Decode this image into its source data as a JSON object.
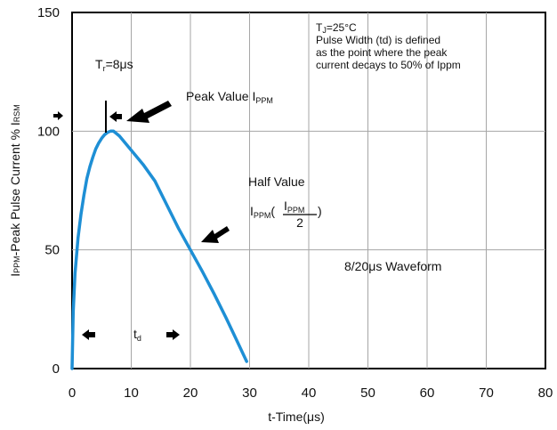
{
  "chart_data": {
    "type": "line",
    "xlabel": "t-Time(μs)",
    "ylabel": {
      "main": "I",
      "sub1": "PPM",
      "mid": "-Peak Pulse Current % I",
      "sub2": "RSM"
    },
    "xlim": [
      0,
      80
    ],
    "ylim": [
      0,
      150
    ],
    "x_ticks": [
      "0",
      "10",
      "20",
      "30",
      "40",
      "50",
      "60",
      "70",
      "80"
    ],
    "y_ticks": [
      "0",
      "50",
      "100",
      "150"
    ],
    "grid": true,
    "series": [
      {
        "color": "#1e8fd5",
        "x": [
          0,
          0.2,
          0.5,
          1,
          1.5,
          2,
          2.5,
          3,
          3.5,
          4,
          4.5,
          5,
          5.5,
          6,
          6.5,
          7,
          8,
          10,
          12,
          14,
          16,
          18,
          20,
          22,
          24,
          26,
          28,
          29.5
        ],
        "y": [
          0,
          24,
          40,
          55,
          65,
          73,
          80,
          85,
          89,
          92.5,
          95,
          97,
          98.5,
          99.5,
          100,
          100,
          98,
          92,
          86,
          79,
          69,
          59,
          50,
          41,
          31.5,
          21.5,
          11,
          3
        ]
      }
    ],
    "annotations": {
      "rise_time": {
        "prefix": "T",
        "sub": "r",
        "suffix": "=8μs"
      },
      "peak": {
        "text": "Peak Value I",
        "sub": "PPM"
      },
      "half_title": "Half Value",
      "half_formula": {
        "lead": "I",
        "lead_sub": "PPM",
        "num": "I",
        "num_sub": "PPM",
        "den": "2"
      },
      "td": {
        "main": "t",
        "sub": "d"
      },
      "note_line1": {
        "prefix": "T",
        "sub": "J",
        "suffix": "=25°C"
      },
      "note_lines": [
        "Pulse Width (td) is defined",
        "as the point where the peak",
        "current decays to 50% of Ippm"
      ],
      "waveform": "8/20μs Waveform"
    },
    "colors": {
      "curve": "#1e8fd5",
      "grid": "#a6a6a6",
      "axes": "#000000",
      "arrows": "#000000"
    }
  }
}
